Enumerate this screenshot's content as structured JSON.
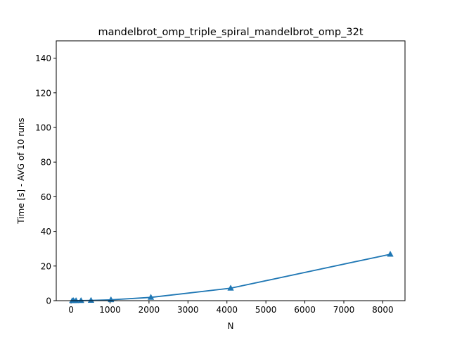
{
  "chart_data": {
    "type": "line",
    "title": "mandelbrot_omp_triple_spiral_mandelbrot_omp_32t",
    "xlabel": "N",
    "ylabel": "Time [s] - AVG of 10 runs",
    "xlim": [
      -380,
      8570
    ],
    "ylim": [
      0,
      150
    ],
    "x_ticks": [
      0,
      1000,
      2000,
      3000,
      4000,
      5000,
      6000,
      7000,
      8000
    ],
    "y_ticks": [
      0,
      20,
      40,
      60,
      80,
      100,
      120,
      140
    ],
    "x_tick_labels": [
      "0",
      "1000",
      "2000",
      "3000",
      "4000",
      "5000",
      "6000",
      "7000",
      "8000"
    ],
    "y_tick_labels": [
      "0",
      "20",
      "40",
      "60",
      "80",
      "100",
      "120",
      "140"
    ],
    "grid": false,
    "series": [
      {
        "color": "#1f77b4",
        "marker": "triangle-up",
        "x": [
          32,
          64,
          128,
          256,
          512,
          1024,
          2048,
          4096,
          8192
        ],
        "y": [
          0.01,
          0.02,
          0.03,
          0.05,
          0.15,
          0.5,
          1.9,
          7.2,
          26.8
        ]
      }
    ]
  }
}
